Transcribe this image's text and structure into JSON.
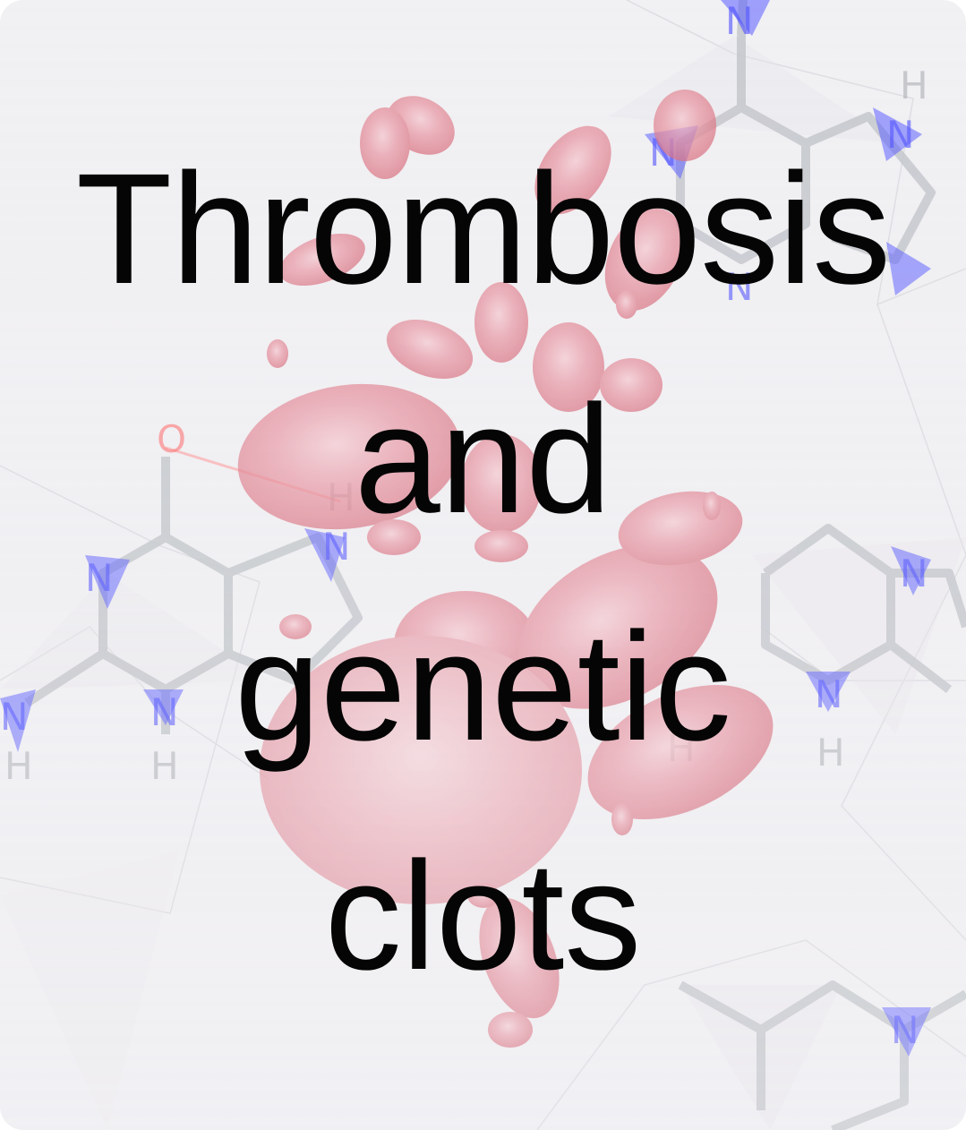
{
  "title": {
    "lines": [
      "Thrombosis",
      "and",
      "genetic",
      "clots"
    ]
  },
  "background": {
    "description_icon": "blood-cells-and-molecule-illustration",
    "atom_labels": [
      "N",
      "N",
      "N",
      "H",
      "N",
      "N",
      "H",
      "O",
      "N",
      "H",
      "N",
      "N",
      "H",
      "H",
      "N",
      "H",
      "N",
      "N",
      "H"
    ]
  },
  "colors": {
    "background": "#f1f0f3",
    "blood_cell": "#e58b98",
    "molecule_bond": "#c9ccd0",
    "nitrogen": "#3b3bff",
    "oxygen": "#ff4a4a",
    "text": "#050505"
  }
}
